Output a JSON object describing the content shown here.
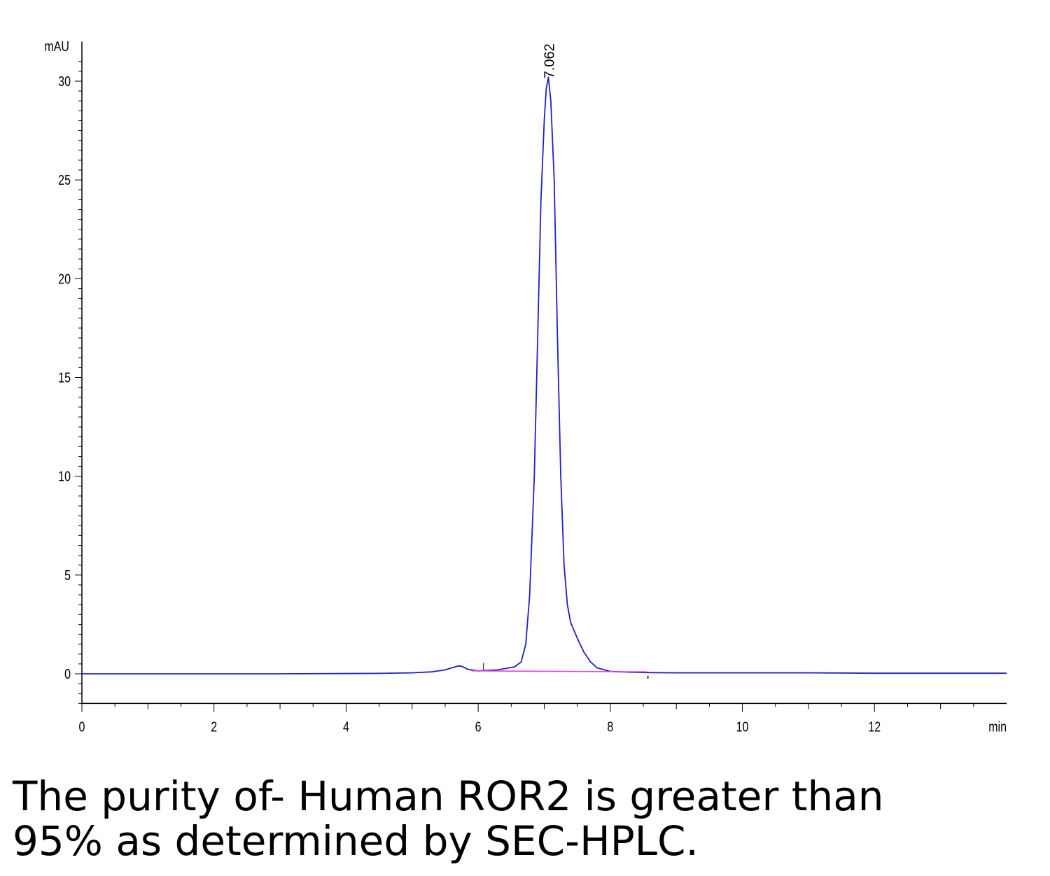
{
  "chart_data": {
    "type": "line",
    "ylabel": "mAU",
    "xlabel": "min",
    "xlim": [
      0,
      14
    ],
    "ylim": [
      -1.5,
      32
    ],
    "x_ticks": [
      0,
      2,
      4,
      6,
      8,
      10,
      12
    ],
    "y_ticks": [
      0,
      5,
      10,
      15,
      20,
      25,
      30
    ],
    "grid": false,
    "legend": "none",
    "peak_label": {
      "text": "7.062",
      "x": 7.062,
      "y": 30.2
    },
    "series": [
      {
        "color": "#1f1fc8",
        "x": [
          0,
          3,
          4.5,
          5.0,
          5.3,
          5.5,
          5.6,
          5.7,
          5.75,
          5.85,
          6.0,
          6.3,
          6.55,
          6.65,
          6.72,
          6.78,
          6.85,
          6.9,
          6.95,
          7.0,
          7.03,
          7.062,
          7.1,
          7.15,
          7.2,
          7.25,
          7.3,
          7.35,
          7.4,
          7.5,
          7.6,
          7.7,
          7.8,
          8.0,
          8.3,
          8.6,
          9.0,
          10.0,
          11.0,
          12.0,
          14.0
        ],
        "y": [
          0,
          0,
          0.02,
          0.05,
          0.1,
          0.2,
          0.3,
          0.4,
          0.38,
          0.22,
          0.15,
          0.2,
          0.35,
          0.6,
          1.5,
          4.0,
          10.0,
          17.0,
          24.0,
          28.0,
          29.6,
          30.2,
          29.0,
          25.0,
          17.0,
          10.0,
          5.5,
          3.5,
          2.6,
          1.8,
          1.1,
          0.6,
          0.3,
          0.12,
          0.08,
          0.06,
          0.05,
          0.05,
          0.05,
          0.03,
          0.03
        ]
      },
      {
        "color": "#e040e0",
        "x": [
          5.9,
          8.55
        ],
        "y": [
          0.15,
          0.1
        ]
      }
    ]
  },
  "caption": {
    "line1": "The purity of- Human ROR2 is greater than",
    "line2": "95% as determined by SEC-HPLC."
  }
}
